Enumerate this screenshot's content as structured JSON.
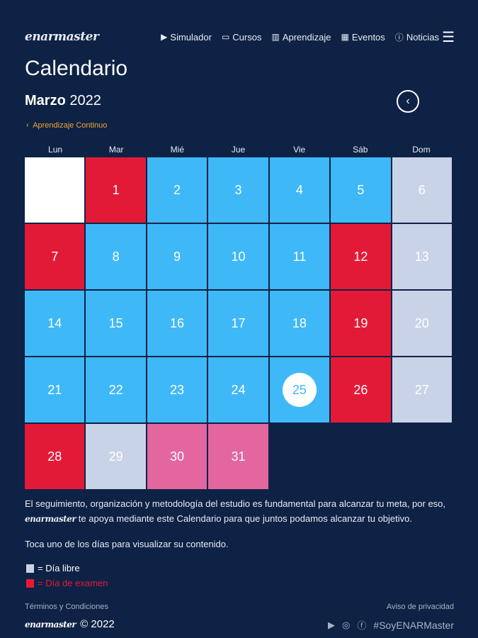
{
  "nav": {
    "logo": "enarmaster",
    "items": [
      {
        "icon": "play-icon",
        "glyph": "▶",
        "label": "Simulador"
      },
      {
        "icon": "courses-icon",
        "glyph": "▭",
        "label": "Cursos"
      },
      {
        "icon": "books-icon",
        "glyph": "▥",
        "label": "Aprendizaje"
      },
      {
        "icon": "calendar-icon",
        "glyph": "▦",
        "label": "Eventos"
      },
      {
        "icon": "info-icon",
        "glyph": "ⓘ",
        "label": "Noticias"
      }
    ]
  },
  "title": "Calendario",
  "month": "Marzo",
  "year": "2022",
  "breadcrumb": "Aprendizaje Continuo",
  "weekdays": [
    "Lun",
    "Mar",
    "Mié",
    "Jue",
    "Vie",
    "Sáb",
    "Dom"
  ],
  "days": [
    {
      "d": "",
      "t": "empty"
    },
    {
      "d": "1",
      "t": "red"
    },
    {
      "d": "2",
      "t": "blue"
    },
    {
      "d": "3",
      "t": "blue"
    },
    {
      "d": "4",
      "t": "blue"
    },
    {
      "d": "5",
      "t": "blue"
    },
    {
      "d": "6",
      "t": "light"
    },
    {
      "d": "7",
      "t": "red"
    },
    {
      "d": "8",
      "t": "blue"
    },
    {
      "d": "9",
      "t": "blue"
    },
    {
      "d": "10",
      "t": "blue"
    },
    {
      "d": "11",
      "t": "blue"
    },
    {
      "d": "12",
      "t": "red"
    },
    {
      "d": "13",
      "t": "light"
    },
    {
      "d": "14",
      "t": "blue"
    },
    {
      "d": "15",
      "t": "blue"
    },
    {
      "d": "16",
      "t": "blue"
    },
    {
      "d": "17",
      "t": "blue"
    },
    {
      "d": "18",
      "t": "blue"
    },
    {
      "d": "19",
      "t": "red"
    },
    {
      "d": "20",
      "t": "light"
    },
    {
      "d": "21",
      "t": "blue"
    },
    {
      "d": "22",
      "t": "blue"
    },
    {
      "d": "23",
      "t": "blue"
    },
    {
      "d": "24",
      "t": "blue"
    },
    {
      "d": "25",
      "t": "blue today"
    },
    {
      "d": "26",
      "t": "red"
    },
    {
      "d": "27",
      "t": "light"
    },
    {
      "d": "28",
      "t": "red"
    },
    {
      "d": "29",
      "t": "light"
    },
    {
      "d": "30",
      "t": "pink"
    },
    {
      "d": "31",
      "t": "pink"
    }
  ],
  "desc_1": "El seguimiento, organización y metodología del estudio es fundamental para alcanzar tu meta, por eso,",
  "desc_logo": "enarmaster",
  "desc_2": " te apoya mediante este Calendario para que juntos podamos alcanzar tu objetivo.",
  "hint": "Toca uno de los días para visualizar su contenido.",
  "legend": {
    "free": "= Día libre",
    "exam": "= Día de examen",
    "free_color": "#c9d3e8",
    "exam_color": "#e31a37"
  },
  "footer": {
    "terms": "Términos y Condiciones",
    "privacy": "Aviso de privacidad",
    "logo": "enarmaster",
    "copyright": "© 2022",
    "hashtag": "#SoyENARMaster"
  }
}
